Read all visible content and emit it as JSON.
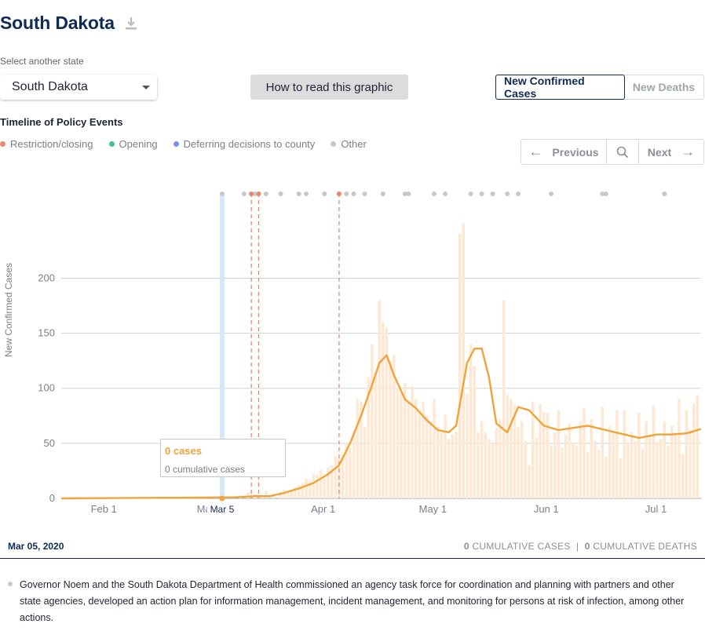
{
  "header": {
    "title": "South Dakota"
  },
  "state_selector": {
    "label": "Select another state",
    "value": "South Dakota"
  },
  "how_to_button": "How to read this graphic",
  "metric_toggle": {
    "active": "New Confirmed Cases",
    "inactive": "New Deaths"
  },
  "timeline": {
    "title": "Timeline of Policy Events",
    "legend": [
      {
        "label": "Restriction/closing",
        "color": "#e9876b"
      },
      {
        "label": "Opening",
        "color": "#3fbf9a"
      },
      {
        "label": "Deferring decisions to county",
        "color": "#7b8ff0"
      },
      {
        "label": "Other",
        "color": "#c8c8c8"
      }
    ],
    "pager": {
      "previous": "Previous",
      "next": "Next"
    }
  },
  "chart_data": {
    "type": "bar",
    "ylabel": "New Confirmed Cases",
    "ylim": [
      0,
      225
    ],
    "yticks": [
      0,
      50,
      100,
      150,
      200
    ],
    "x_tick_labels": [
      "Feb 1",
      "Mar 1",
      "Mar 5",
      "Apr 1",
      "May 1",
      "Jun 1",
      "Jul 1"
    ],
    "x_start": "2020-01-21",
    "x_end": "2020-07-14",
    "selected_date": "2020-03-05",
    "restriction_event_dates": [
      "2020-03-13",
      "2020-03-15",
      "2020-04-06"
    ],
    "series": [
      {
        "name": "daily",
        "color": "#fde9d3",
        "x": [
          "2020-03-10",
          "2020-03-12",
          "2020-03-14",
          "2020-03-16",
          "2020-03-17",
          "2020-03-19",
          "2020-03-21",
          "2020-03-22",
          "2020-03-23",
          "2020-03-24",
          "2020-03-25",
          "2020-03-26",
          "2020-03-27",
          "2020-03-28",
          "2020-03-29",
          "2020-03-30",
          "2020-03-31",
          "2020-04-01",
          "2020-04-02",
          "2020-04-03",
          "2020-04-04",
          "2020-04-05",
          "2020-04-06",
          "2020-04-07",
          "2020-04-08",
          "2020-04-09",
          "2020-04-10",
          "2020-04-11",
          "2020-04-12",
          "2020-04-13",
          "2020-04-14",
          "2020-04-15",
          "2020-04-16",
          "2020-04-17",
          "2020-04-18",
          "2020-04-19",
          "2020-04-20",
          "2020-04-21",
          "2020-04-22",
          "2020-04-23",
          "2020-04-24",
          "2020-04-25",
          "2020-04-26",
          "2020-04-27",
          "2020-04-28",
          "2020-04-29",
          "2020-04-30",
          "2020-05-01",
          "2020-05-02",
          "2020-05-03",
          "2020-05-04",
          "2020-05-05",
          "2020-05-06",
          "2020-05-07",
          "2020-05-08",
          "2020-05-09",
          "2020-05-10",
          "2020-05-11",
          "2020-05-12",
          "2020-05-13",
          "2020-05-14",
          "2020-05-15",
          "2020-05-16",
          "2020-05-17",
          "2020-05-18",
          "2020-05-19",
          "2020-05-20",
          "2020-05-21",
          "2020-05-22",
          "2020-05-23",
          "2020-05-24",
          "2020-05-25",
          "2020-05-26",
          "2020-05-27",
          "2020-05-28",
          "2020-05-29",
          "2020-05-30",
          "2020-05-31",
          "2020-06-01",
          "2020-06-02",
          "2020-06-03",
          "2020-06-04",
          "2020-06-05",
          "2020-06-06",
          "2020-06-07",
          "2020-06-08",
          "2020-06-09",
          "2020-06-10",
          "2020-06-11",
          "2020-06-12",
          "2020-06-13",
          "2020-06-14",
          "2020-06-15",
          "2020-06-16",
          "2020-06-17",
          "2020-06-18",
          "2020-06-19",
          "2020-06-20",
          "2020-06-21",
          "2020-06-22",
          "2020-06-23",
          "2020-06-24",
          "2020-06-25",
          "2020-06-26",
          "2020-06-27",
          "2020-06-28",
          "2020-06-29",
          "2020-06-30",
          "2020-07-01",
          "2020-07-02",
          "2020-07-03",
          "2020-07-04",
          "2020-07-05",
          "2020-07-06",
          "2020-07-07",
          "2020-07-08",
          "2020-07-09",
          "2020-07-10",
          "2020-07-11",
          "2020-07-12",
          "2020-07-13"
        ],
        "values": [
          3,
          5,
          4,
          2,
          7,
          4,
          6,
          8,
          5,
          7,
          10,
          12,
          14,
          18,
          16,
          22,
          21,
          26,
          19,
          28,
          30,
          38,
          36,
          40,
          50,
          46,
          60,
          90,
          88,
          65,
          110,
          140,
          115,
          180,
          160,
          155,
          125,
          130,
          100,
          95,
          105,
          88,
          102,
          90,
          80,
          88,
          75,
          70,
          90,
          65,
          60,
          76,
          54,
          58,
          61,
          240,
          250,
          95,
          140,
          120,
          60,
          70,
          60,
          54,
          50,
          64,
          72,
          180,
          94,
          90,
          85,
          65,
          70,
          52,
          30,
          88,
          55,
          86,
          78,
          78,
          48,
          60,
          80,
          46,
          58,
          68,
          50,
          48,
          70,
          82,
          42,
          72,
          52,
          44,
          83,
          38,
          66,
          60,
          80,
          36,
          80,
          50,
          60,
          52,
          78,
          45,
          70,
          56,
          84,
          51,
          54,
          70,
          48,
          66,
          60,
          90,
          40,
          80,
          62,
          86,
          94
        ]
      },
      {
        "name": "7-day average",
        "color": "#f0a33b",
        "x": [
          "2020-01-21",
          "2020-03-09",
          "2020-03-14",
          "2020-03-18",
          "2020-03-22",
          "2020-03-26",
          "2020-03-30",
          "2020-04-03",
          "2020-04-06",
          "2020-04-09",
          "2020-04-12",
          "2020-04-15",
          "2020-04-17",
          "2020-04-19",
          "2020-04-21",
          "2020-04-24",
          "2020-04-27",
          "2020-04-30",
          "2020-05-03",
          "2020-05-06",
          "2020-05-08",
          "2020-05-11",
          "2020-05-13",
          "2020-05-15",
          "2020-05-17",
          "2020-05-19",
          "2020-05-22",
          "2020-05-25",
          "2020-05-28",
          "2020-06-01",
          "2020-06-05",
          "2020-06-09",
          "2020-06-13",
          "2020-06-18",
          "2020-06-23",
          "2020-06-27",
          "2020-07-02",
          "2020-07-06",
          "2020-07-10",
          "2020-07-14"
        ],
        "values": [
          0,
          1,
          2,
          2,
          5,
          9,
          14,
          22,
          30,
          50,
          75,
          103,
          123,
          130,
          112,
          90,
          82,
          71,
          62,
          60,
          66,
          123,
          136,
          136,
          110,
          68,
          60,
          83,
          80,
          66,
          62,
          64,
          66,
          62,
          58,
          55,
          58,
          58,
          59,
          63
        ]
      }
    ]
  },
  "footer": {
    "date": "Mar 05, 2020",
    "cumulative_cases_value": "0",
    "cumulative_cases_label": "CUMULATIVE CASES",
    "separator": "|",
    "cumulative_deaths_value": "0",
    "cumulative_deaths_label": "CUMULATIVE DEATHS"
  },
  "tooltip": {
    "main": "0 cases",
    "sub": "0 cumulative cases"
  },
  "event_description": "Governor Noem and the South Dakota Department of Health commissioned an agency task force for coordination and planning with partners and other state agencies, developed an action plan for information management, incident management, and monitoring for persons at risk of infection, among other actions."
}
